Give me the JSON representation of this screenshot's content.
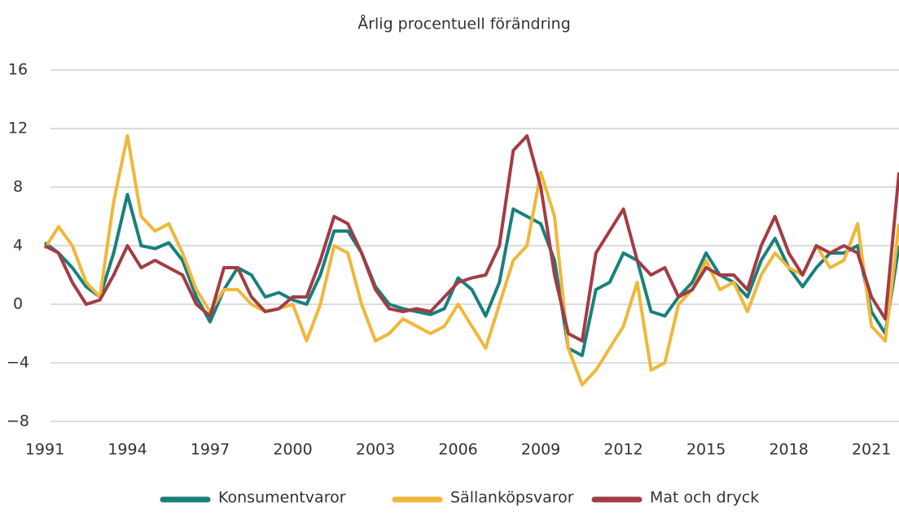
{
  "chart_data": {
    "type": "line",
    "title": "Årlig procentuell förändring",
    "x": [
      1991,
      1991.5,
      1992,
      1992.5,
      1993,
      1993.5,
      1994,
      1994.5,
      1995,
      1995.5,
      1996,
      1996.5,
      1997,
      1997.5,
      1998,
      1998.5,
      1999,
      1999.5,
      2000,
      2000.5,
      2001,
      2001.5,
      2002,
      2002.5,
      2003,
      2003.5,
      2004,
      2004.5,
      2005,
      2005.5,
      2006,
      2006.5,
      2007,
      2007.5,
      2008,
      2008.5,
      2009,
      2009.5,
      2010,
      2010.5,
      2011,
      2011.5,
      2012,
      2012.5,
      2013,
      2013.5,
      2014,
      2014.5,
      2015,
      2015.5,
      2016,
      2016.5,
      2017,
      2017.5,
      2018,
      2018.5,
      2019,
      2019.5,
      2020,
      2020.5,
      2021,
      2021.5,
      2022
    ],
    "series": [
      {
        "name": "Konsumentvaror",
        "color": "#17807d",
        "values": [
          4.2,
          3.5,
          2.5,
          1.2,
          0.5,
          3.5,
          7.5,
          4,
          3.8,
          4.2,
          3,
          0.5,
          -1.2,
          1,
          2.5,
          2,
          0.5,
          0.8,
          0.3,
          0,
          2,
          5,
          5,
          3.5,
          1.2,
          0,
          -0.3,
          -0.5,
          -0.7,
          -0.3,
          1.8,
          1,
          -0.8,
          1.5,
          6.5,
          6,
          5.5,
          3,
          -3,
          -3.5,
          1,
          1.5,
          3.5,
          3,
          -0.5,
          -0.8,
          0.5,
          1.5,
          3.5,
          2,
          1.5,
          0.5,
          3,
          4.5,
          2.5,
          1.2,
          2.5,
          3.5,
          3.5,
          4,
          -0.5,
          -2,
          4
        ]
      },
      {
        "name": "Sällanköpsvaror",
        "color": "#f0b73a",
        "values": [
          3.8,
          5.3,
          4,
          1.5,
          0.5,
          7,
          11.5,
          6,
          5,
          5.5,
          3.5,
          1,
          -0.5,
          1,
          1,
          0,
          -0.5,
          -0.3,
          0,
          -2.5,
          0,
          4,
          3.5,
          0,
          -2.5,
          -2,
          -1,
          -1.5,
          -2,
          -1.5,
          0,
          -1.5,
          -3,
          0,
          3,
          4,
          9,
          6,
          -3,
          -5.5,
          -4.5,
          -3,
          -1.5,
          1.5,
          -4.5,
          -4,
          0,
          1,
          3,
          1,
          1.5,
          -0.5,
          2,
          3.5,
          2.5,
          2,
          4,
          2.5,
          3,
          5.5,
          -1.5,
          -2.5,
          5.5
        ]
      },
      {
        "name": "Mat och dryck",
        "color": "#a23c45",
        "values": [
          4,
          3.5,
          1.5,
          0,
          0.3,
          2,
          4,
          2.5,
          3,
          2.5,
          2,
          0,
          -0.8,
          2.5,
          2.5,
          0.5,
          -0.5,
          -0.3,
          0.5,
          0.5,
          3,
          6,
          5.5,
          3.5,
          1,
          -0.3,
          -0.5,
          -0.3,
          -0.5,
          0.5,
          1.5,
          1.8,
          2,
          4,
          10.5,
          11.5,
          8,
          2,
          -2,
          -2.5,
          3.5,
          5,
          6.5,
          3,
          2,
          2.5,
          0.5,
          1,
          2.5,
          2,
          2,
          1,
          4,
          6,
          3.5,
          2,
          4,
          3.5,
          4,
          3.5,
          0.5,
          -1,
          9
        ]
      }
    ],
    "xlim": [
      1991,
      2022
    ],
    "xticks": [
      1991,
      1994,
      1997,
      2000,
      2003,
      2006,
      2009,
      2012,
      2015,
      2018,
      2021
    ],
    "ylim": [
      -8,
      16
    ],
    "yticks": [
      {
        "value": -8,
        "label": "−8"
      },
      {
        "value": -4,
        "label": "−4"
      },
      0,
      4,
      8,
      12,
      16
    ],
    "grid": true
  }
}
